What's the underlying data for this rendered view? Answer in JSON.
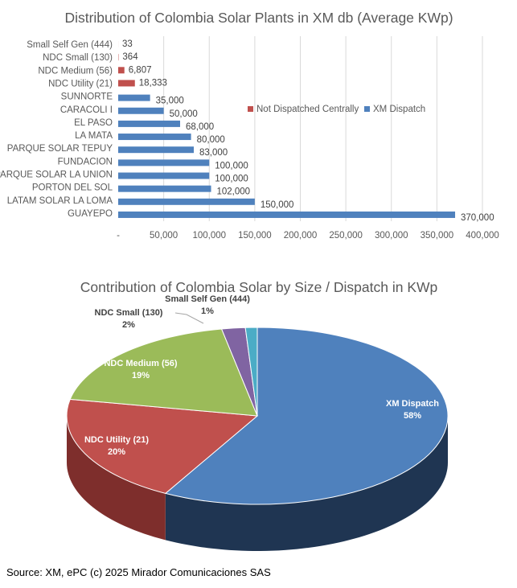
{
  "chart_data": [
    {
      "type": "bar",
      "orientation": "horizontal",
      "title": "Distribution of Colombia Solar Plants in XM db (Average KWp)",
      "xlim": [
        0,
        400000
      ],
      "xticks": [
        "-",
        "50,000",
        "100,000",
        "150,000",
        "200,000",
        "250,000",
        "300,000",
        "350,000",
        "400,000"
      ],
      "xtick_values": [
        0,
        50000,
        100000,
        150000,
        200000,
        250000,
        300000,
        350000,
        400000
      ],
      "grid": true,
      "legend_position": "top-right",
      "legend": [
        {
          "name": "Not Dispatched Centrally",
          "color": "#C0504D"
        },
        {
          "name": "XM Dispatch",
          "color": "#4F81BD"
        }
      ],
      "categories": [
        "Small Self Gen (444)",
        "NDC Small (130)",
        "NDC Medium (56)",
        "NDC Utility (21)",
        "SUNNORTE",
        "CARACOLI I",
        "EL PASO",
        "LA MATA",
        "PARQUE SOLAR TEPUY",
        "FUNDACION",
        "PARQUE SOLAR LA UNION",
        "PORTON DEL SOL",
        "LATAM SOLAR LA LOMA",
        "GUAYEPO"
      ],
      "values": [
        33,
        364,
        6807,
        18333,
        35000,
        50000,
        68000,
        80000,
        83000,
        100000,
        100000,
        102000,
        150000,
        370000
      ],
      "labels": [
        "33",
        "364",
        "6,807",
        "18,333",
        "35,000",
        "50,000",
        "68,000",
        "80,000",
        "83,000",
        "100,000",
        "100,000",
        "102,000",
        "150,000",
        "370,000"
      ],
      "series_of": [
        0,
        0,
        0,
        0,
        1,
        1,
        1,
        1,
        1,
        1,
        1,
        1,
        1,
        1
      ]
    },
    {
      "type": "pie",
      "style": "3d",
      "title": "Contribution of Colombia Solar by Size / Dispatch in KWp",
      "slices": [
        {
          "name": "XM Dispatch",
          "pct_label": "58%",
          "value": 58,
          "color": "#4F81BD",
          "side": "#1F3552"
        },
        {
          "name": "NDC Utility (21)",
          "pct_label": "20%",
          "value": 20,
          "color": "#C0504D",
          "side": "#7E2E2C"
        },
        {
          "name": "NDC Medium (56)",
          "pct_label": "19%",
          "value": 19,
          "color": "#9BBB59",
          "side": "#5E7535"
        },
        {
          "name": "NDC Small (130)",
          "pct_label": "2%",
          "value": 2,
          "color": "#8064A2",
          "side": "#4E3C63"
        },
        {
          "name": "Small Self Gen (444)",
          "pct_label": "1%",
          "value": 1,
          "color": "#4BACC6",
          "side": "#2C6878"
        }
      ]
    }
  ],
  "source": "Source: XM, ePC (c) 2025 Mirador Comunicaciones SAS"
}
